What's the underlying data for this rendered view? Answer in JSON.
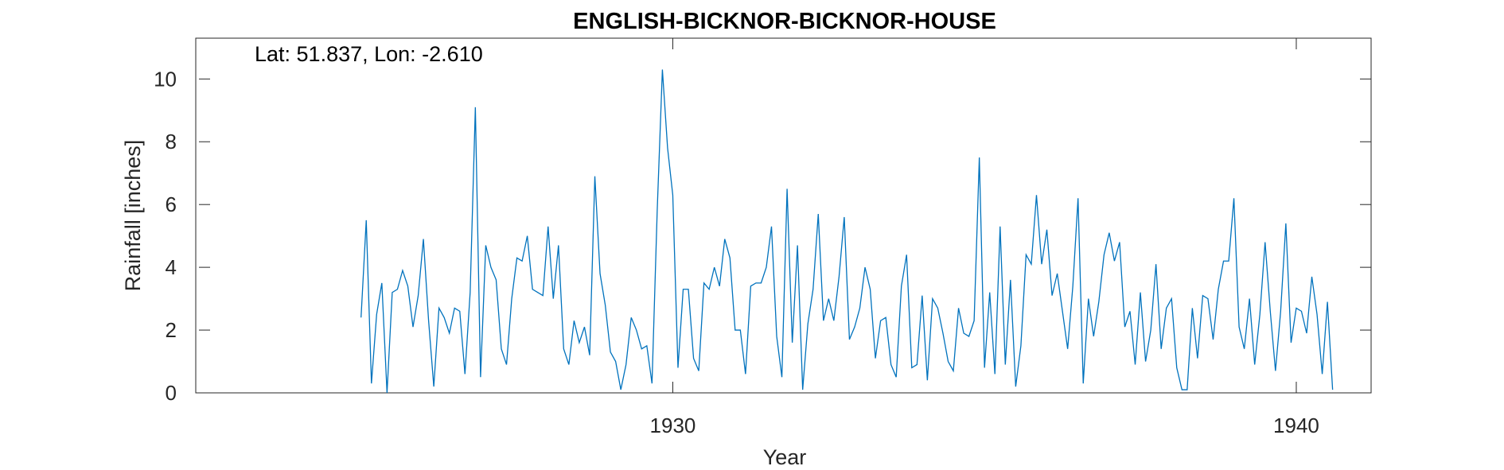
{
  "chart_data": {
    "type": "line",
    "title": "ENGLISH-BICKNOR-BICKNOR-HOUSE",
    "xlabel": "Year",
    "ylabel": "Rainfall [inches]",
    "annotation": "Lat: 51.837, Lon: -2.610",
    "xlim": [
      1922.4,
      1941.2
    ],
    "ylim": [
      0,
      11.3
    ],
    "xticks": [
      1930,
      1940
    ],
    "yticks": [
      0,
      2,
      4,
      6,
      8,
      10
    ],
    "grid": false,
    "line_color": "#0072BD",
    "series": [
      {
        "name": "",
        "x_start": 1925.0,
        "x_step": 0.08333,
        "values": [
          2.4,
          5.5,
          0.3,
          2.5,
          3.5,
          0.0,
          3.2,
          3.3,
          3.9,
          3.4,
          2.1,
          3.1,
          4.9,
          2.3,
          0.2,
          2.7,
          2.4,
          1.9,
          2.7,
          2.6,
          0.6,
          3.2,
          9.1,
          0.5,
          4.7,
          4.0,
          3.6,
          1.4,
          0.9,
          3.0,
          4.3,
          4.2,
          5.0,
          3.3,
          3.2,
          3.1,
          5.3,
          3.0,
          4.7,
          1.4,
          0.9,
          2.3,
          1.6,
          2.1,
          1.2,
          6.9,
          3.8,
          2.8,
          1.3,
          1.0,
          0.1,
          0.9,
          2.4,
          2.0,
          1.4,
          1.5,
          0.3,
          5.8,
          10.3,
          7.8,
          6.3,
          0.8,
          3.3,
          3.3,
          1.1,
          0.7,
          3.5,
          3.3,
          4.0,
          3.4,
          4.9,
          4.3,
          2.0,
          2.0,
          0.6,
          3.4,
          3.5,
          3.5,
          4.0,
          5.3,
          1.8,
          0.5,
          6.5,
          1.6,
          4.7,
          0.1,
          2.2,
          3.3,
          5.7,
          2.3,
          3.0,
          2.3,
          3.7,
          5.6,
          1.7,
          2.1,
          2.7,
          4.0,
          3.3,
          1.1,
          2.3,
          2.4,
          0.9,
          0.5,
          3.4,
          4.4,
          0.8,
          0.9,
          3.1,
          0.4,
          3.0,
          2.7,
          1.9,
          1.0,
          0.7,
          2.7,
          1.9,
          1.8,
          2.3,
          7.5,
          0.8,
          3.2,
          0.6,
          5.3,
          0.9,
          3.6,
          0.2,
          1.5,
          4.4,
          4.1,
          6.3,
          4.1,
          5.2,
          3.1,
          3.8,
          2.6,
          1.4,
          3.4,
          6.2,
          0.3,
          3.0,
          1.8,
          2.9,
          4.4,
          5.1,
          4.2,
          4.8,
          2.1,
          2.6,
          0.9,
          3.2,
          1.0,
          2.0,
          4.1,
          1.4,
          2.7,
          3.0,
          0.8,
          0.1,
          0.1,
          2.7,
          1.1,
          3.1,
          3.0,
          1.7,
          3.3,
          4.2,
          4.2,
          6.2,
          2.1,
          1.4,
          3.0,
          0.9,
          2.5,
          4.8,
          2.6,
          0.7,
          2.6,
          5.4,
          1.6,
          2.7,
          2.6,
          1.9,
          3.7,
          2.5,
          0.6,
          2.9,
          0.1
        ]
      }
    ]
  }
}
